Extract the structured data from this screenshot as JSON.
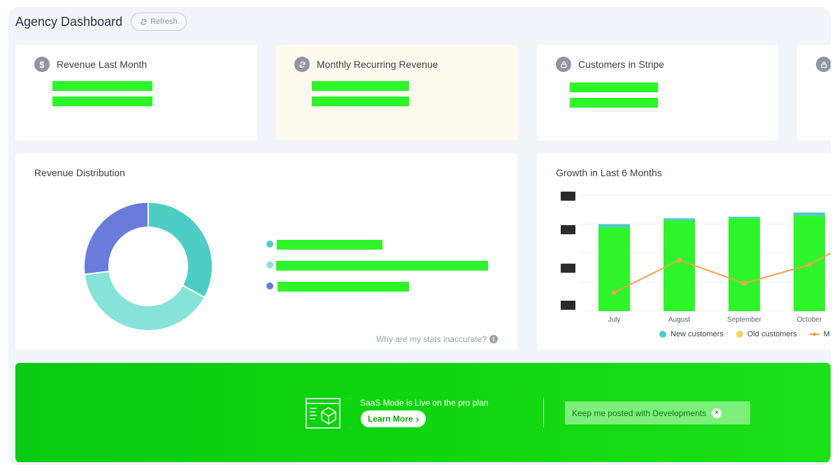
{
  "header": {
    "title": "Agency Dashboard",
    "refresh_label": "Refresh"
  },
  "stats": [
    {
      "title": "Revenue Last Month",
      "icon": "dollar-icon"
    },
    {
      "title": "Monthly Recurring Revenue",
      "icon": "refresh-cycle-icon"
    },
    {
      "title": "Customers in Stripe",
      "icon": "lock-icon"
    },
    {
      "title": "",
      "icon": "lock-icon"
    }
  ],
  "revenue_distribution": {
    "title": "Revenue Distribution",
    "help_text": "Why are my stats inaccurate?",
    "legend_colors": [
      "#4ecdc4",
      "#7fe0d8",
      "#6a7bdc"
    ]
  },
  "growth": {
    "title": "Growth in Last 6 Months",
    "legend": [
      {
        "label": "New customers",
        "color": "#4ecdc4"
      },
      {
        "label": "Old customers",
        "color": "#f2d45c"
      },
      {
        "label": "M",
        "color": "#f0a14b"
      }
    ]
  },
  "chart_data": {
    "type": "bar",
    "title": "Growth in Last 6 Months",
    "categories": [
      "July",
      "August",
      "September",
      "October"
    ],
    "series": [
      {
        "name": "New customers",
        "values": [
          3.6,
          3.9,
          4.0,
          4.1
        ]
      },
      {
        "name": "Old customers",
        "values": [
          0.15,
          0.1,
          0.07,
          0.15
        ]
      },
      {
        "name": "M",
        "values": [
          0.8,
          2.2,
          1.2,
          2.0
        ]
      }
    ],
    "ylim": [
      0,
      5
    ],
    "colors": {
      "bar": "#2ef52a",
      "bar_top": "#4ecdc4",
      "line": "#f0a14b"
    }
  },
  "donut": {
    "segments": [
      {
        "value": 33,
        "color": "#4ecdc4"
      },
      {
        "value": 40,
        "color": "#86e3d9"
      },
      {
        "value": 27,
        "color": "#6a7bdc"
      }
    ]
  },
  "banner": {
    "text": "SaaS Mode is Live on the pro plan",
    "learn_more": "Learn More",
    "keep_posted": "Keep me posted with Developments",
    "close": "×"
  }
}
